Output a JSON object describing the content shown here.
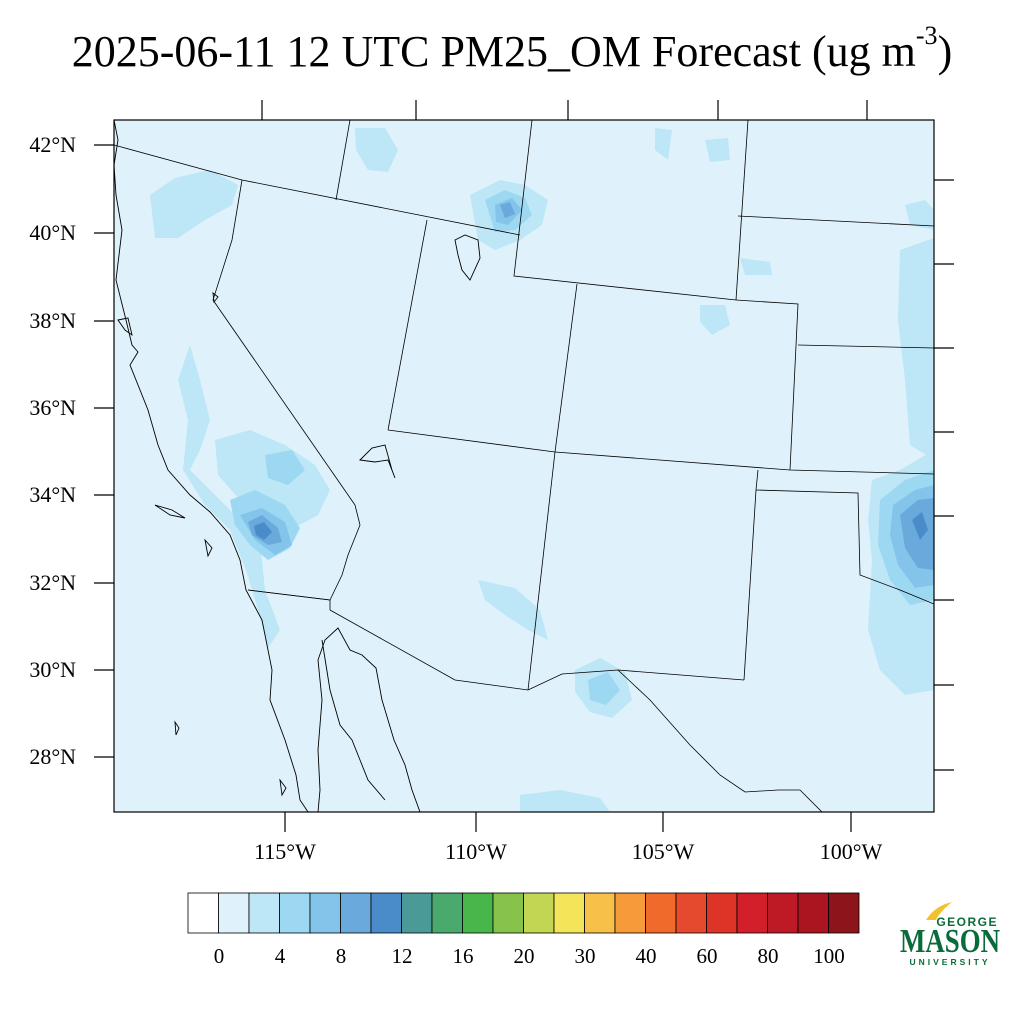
{
  "title": {
    "main": "2025-06-11 12 UTC PM25_OM Forecast (ug m",
    "superscript": "-3",
    "close": ")"
  },
  "map": {
    "region": "Southwestern United States and northern Mexico",
    "variable": "PM25_OM",
    "units": "ug m-3",
    "lat_labels": [
      "42°N",
      "40°N",
      "38°N",
      "36°N",
      "34°N",
      "32°N",
      "30°N",
      "28°N"
    ],
    "lon_labels": [
      "115°W",
      "110°W",
      "105°W",
      "100°W"
    ],
    "background_level": "0-2"
  },
  "colorbar": {
    "labels": [
      "0",
      "4",
      "8",
      "12",
      "16",
      "20",
      "30",
      "40",
      "60",
      "80",
      "100"
    ],
    "colors": [
      "#ffffff",
      "#dff2fb",
      "#bde6f6",
      "#9dd8f3",
      "#84c4ea",
      "#69a9db",
      "#4a8cc9",
      "#4a9a98",
      "#4aaa6e",
      "#48b64a",
      "#87c24a",
      "#c3d654",
      "#f3e45a",
      "#f7c049",
      "#f79a3a",
      "#f06a2c",
      "#e64a2e",
      "#dc3426",
      "#d21f2a",
      "#be1a25",
      "#aa1520",
      "#8e141c"
    ]
  },
  "logo": {
    "line1": "GEORGE",
    "line2": "MASON",
    "line3": "UNIVERSITY",
    "color": "#0a6b3a",
    "accent": "#f2c12e"
  }
}
